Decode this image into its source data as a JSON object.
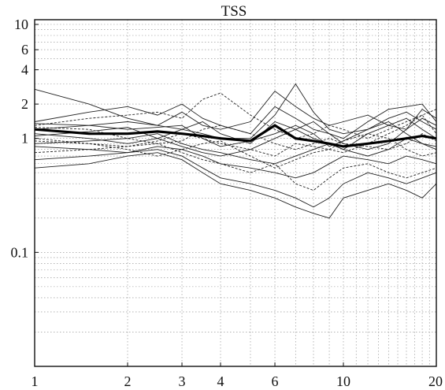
{
  "chart_data": {
    "type": "line",
    "title": "TSS",
    "xlabel": "",
    "ylabel": "",
    "x_scale": "log",
    "y_scale": "log",
    "xlim": [
      1,
      20
    ],
    "ylim": [
      0.01,
      11
    ],
    "grid": true,
    "x_tick_labels": [
      "1",
      "2",
      "3",
      "4",
      "6",
      "10",
      "20"
    ],
    "x_tick_values": [
      1,
      2,
      3,
      4,
      6,
      10,
      20
    ],
    "y_tick_labels": [
      "0.1",
      "1",
      "2",
      "4",
      "6",
      "10"
    ],
    "y_tick_values": [
      0.1,
      1,
      2,
      4,
      6,
      10
    ],
    "x": [
      1,
      1.5,
      2,
      2.5,
      3,
      3.5,
      4,
      5,
      6,
      7,
      8,
      9,
      10,
      12,
      14,
      16,
      18,
      20
    ],
    "mean_series": {
      "values": [
        1.2,
        1.1,
        1.1,
        1.15,
        1.1,
        1.05,
        1.0,
        0.95,
        1.3,
        1.0,
        0.95,
        0.9,
        0.85,
        0.9,
        0.95,
        1.0,
        1.05,
        1.0
      ]
    },
    "series": [
      {
        "values": [
          2.7,
          2.0,
          1.5,
          1.3,
          1.2,
          1.4,
          1.1,
          0.9,
          1.4,
          1.2,
          1.0,
          0.9,
          0.8,
          1.1,
          1.3,
          1.5,
          1.2,
          1.0
        ]
      },
      {
        "values": [
          1.4,
          1.7,
          1.9,
          1.6,
          2.0,
          1.5,
          1.3,
          1.1,
          1.9,
          1.5,
          1.2,
          1.1,
          1.0,
          1.4,
          1.8,
          1.9,
          2.0,
          1.4
        ]
      },
      {
        "values": [
          1.3,
          1.5,
          1.6,
          1.7,
          1.5,
          2.2,
          2.5,
          1.6,
          1.2,
          1.0,
          1.1,
          1.3,
          1.2,
          1.0,
          1.2,
          1.4,
          1.6,
          1.8
        ]
      },
      {
        "values": [
          1.2,
          1.3,
          1.4,
          1.3,
          1.7,
          1.3,
          1.2,
          1.4,
          2.6,
          1.9,
          1.5,
          1.3,
          1.4,
          1.6,
          1.3,
          1.2,
          1.5,
          1.3
        ]
      },
      {
        "values": [
          1.1,
          1.0,
          0.9,
          1.0,
          1.2,
          1.1,
          1.0,
          1.0,
          1.6,
          3.0,
          1.7,
          1.2,
          1.1,
          1.2,
          1.5,
          1.7,
          1.4,
          1.2
        ]
      },
      {
        "values": [
          1.0,
          0.9,
          0.85,
          0.95,
          1.1,
          1.0,
          0.9,
          0.8,
          0.7,
          0.9,
          0.85,
          0.8,
          0.75,
          0.9,
          1.1,
          1.3,
          1.6,
          1.1
        ]
      },
      {
        "values": [
          0.9,
          0.95,
          1.0,
          1.1,
          0.9,
          0.8,
          0.75,
          0.65,
          0.6,
          0.7,
          0.8,
          0.9,
          0.8,
          0.7,
          0.8,
          1.0,
          0.9,
          0.85
        ]
      },
      {
        "values": [
          0.85,
          0.8,
          0.75,
          0.85,
          0.8,
          0.7,
          0.6,
          0.55,
          0.5,
          0.45,
          0.5,
          0.6,
          0.7,
          0.65,
          0.6,
          0.7,
          0.65,
          0.6
        ]
      },
      {
        "values": [
          0.75,
          0.8,
          0.85,
          0.9,
          0.75,
          0.65,
          0.6,
          0.5,
          0.6,
          0.4,
          0.35,
          0.45,
          0.55,
          0.6,
          0.5,
          0.45,
          0.5,
          0.55
        ]
      },
      {
        "values": [
          0.65,
          0.7,
          0.75,
          0.8,
          0.7,
          0.55,
          0.45,
          0.4,
          0.35,
          0.3,
          0.25,
          0.3,
          0.4,
          0.5,
          0.45,
          0.4,
          0.45,
          0.5
        ]
      },
      {
        "values": [
          0.55,
          0.6,
          0.7,
          0.75,
          0.65,
          0.5,
          0.4,
          0.35,
          0.3,
          0.25,
          0.22,
          0.2,
          0.3,
          0.35,
          0.4,
          0.35,
          0.3,
          0.4
        ]
      },
      {
        "values": [
          1.25,
          1.2,
          1.0,
          0.9,
          0.95,
          1.2,
          1.3,
          1.1,
          0.9,
          0.8,
          0.9,
          1.0,
          0.9,
          0.85,
          0.8,
          0.9,
          1.1,
          0.95
        ]
      },
      {
        "values": [
          1.35,
          1.3,
          1.2,
          1.25,
          1.3,
          1.0,
          0.85,
          0.95,
          1.1,
          1.3,
          1.1,
          0.85,
          0.95,
          1.2,
          1.4,
          1.1,
          0.9,
          0.8
        ]
      },
      {
        "values": [
          1.05,
          1.15,
          1.25,
          1.0,
          0.85,
          0.75,
          0.7,
          0.8,
          1.0,
          1.2,
          1.4,
          1.1,
          0.9,
          0.8,
          0.9,
          1.2,
          1.8,
          1.5
        ]
      },
      {
        "values": [
          0.95,
          0.9,
          0.8,
          0.7,
          0.8,
          0.9,
          0.95,
          0.7,
          0.55,
          0.65,
          0.75,
          0.8,
          0.95,
          1.1,
          1.0,
          0.8,
          0.7,
          0.75
        ]
      }
    ]
  }
}
